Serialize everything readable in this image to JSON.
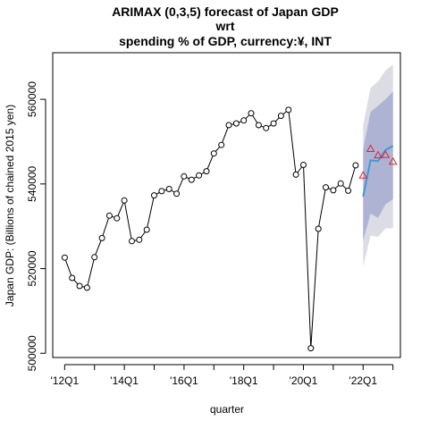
{
  "chart_data": {
    "type": "line",
    "title_lines": [
      "ARIMAX (0,3,5) forecast of  Japan GDP",
      "wrt",
      "spending % of GDP, currency:¥, INT"
    ],
    "xlabel": "quarter",
    "ylabel": "Japan GDP: (Billions of chained 2015 yen)",
    "xlim": [
      2011.6,
      2023.25
    ],
    "ylim": [
      499000,
      571000
    ],
    "x_ticks": [
      {
        "value": 2012.0,
        "label": "'12Q1"
      },
      {
        "value": 2013.0,
        "label": ""
      },
      {
        "value": 2014.0,
        "label": "'14Q1"
      },
      {
        "value": 2015.0,
        "label": ""
      },
      {
        "value": 2016.0,
        "label": "'16Q1"
      },
      {
        "value": 2017.0,
        "label": ""
      },
      {
        "value": 2018.0,
        "label": "'18Q1"
      },
      {
        "value": 2019.0,
        "label": ""
      },
      {
        "value": 2020.0,
        "label": "'20Q1"
      },
      {
        "value": 2021.0,
        "label": ""
      },
      {
        "value": 2022.0,
        "label": "'22Q1"
      },
      {
        "value": 2023.0,
        "label": ""
      }
    ],
    "y_ticks": [
      {
        "value": 500000,
        "label": "500000"
      },
      {
        "value": 520000,
        "label": "520000"
      },
      {
        "value": 540000,
        "label": "540000"
      },
      {
        "value": 560000,
        "label": "560000"
      }
    ],
    "series": [
      {
        "role": "observed",
        "color": "#000000",
        "x": [
          2012.0,
          2012.25,
          2012.5,
          2012.75,
          2013.0,
          2013.25,
          2013.5,
          2013.75,
          2014.0,
          2014.25,
          2014.5,
          2014.75,
          2015.0,
          2015.25,
          2015.5,
          2015.75,
          2016.0,
          2016.25,
          2016.5,
          2016.75,
          2017.0,
          2017.25,
          2017.5,
          2017.75,
          2018.0,
          2018.25,
          2018.5,
          2018.75,
          2019.0,
          2019.25,
          2019.5,
          2019.75,
          2020.0,
          2020.25,
          2020.5,
          2020.75,
          2021.0,
          2021.25,
          2021.5,
          2021.75
        ],
        "values": [
          522600,
          517800,
          515900,
          515500,
          522700,
          527200,
          532500,
          531900,
          536100,
          526500,
          526800,
          529200,
          537300,
          538300,
          538800,
          537700,
          541800,
          541000,
          542000,
          543000,
          547200,
          549200,
          553900,
          554300,
          555000,
          556700,
          553900,
          553200,
          554300,
          556100,
          557500,
          542200,
          544500,
          501200,
          529400,
          539200,
          538500,
          540100,
          538400,
          544400
        ]
      },
      {
        "role": "forecast",
        "color": "#3a9ad9",
        "x": [
          2022.0,
          2022.25,
          2022.5,
          2022.75,
          2023.0
        ],
        "values": [
          537000,
          545600,
          545400,
          548000,
          549000
        ]
      },
      {
        "role": "actual-future",
        "color": "#e8202a",
        "marker": "triangle",
        "x": [
          2022.0,
          2022.25,
          2022.5,
          2022.75,
          2023.0
        ],
        "values": [
          542000,
          548300,
          546800,
          546900,
          545300
        ]
      }
    ],
    "intervals": [
      {
        "level": "outer",
        "color": "#dcdce4",
        "x": [
          2022.0,
          2022.25,
          2022.5,
          2022.75,
          2023.0
        ],
        "lower": [
          520500,
          527800,
          527500,
          529500,
          529500
        ],
        "upper": [
          553800,
          562700,
          564200,
          566800,
          568200
        ]
      },
      {
        "level": "inner",
        "color": "#aeb3d3",
        "x": [
          2022.0,
          2022.25,
          2022.5,
          2022.75,
          2023.0
        ],
        "lower": [
          526600,
          533000,
          532000,
          535200,
          536400
        ],
        "upper": [
          548200,
          557000,
          558500,
          560000,
          561800
        ]
      }
    ]
  }
}
